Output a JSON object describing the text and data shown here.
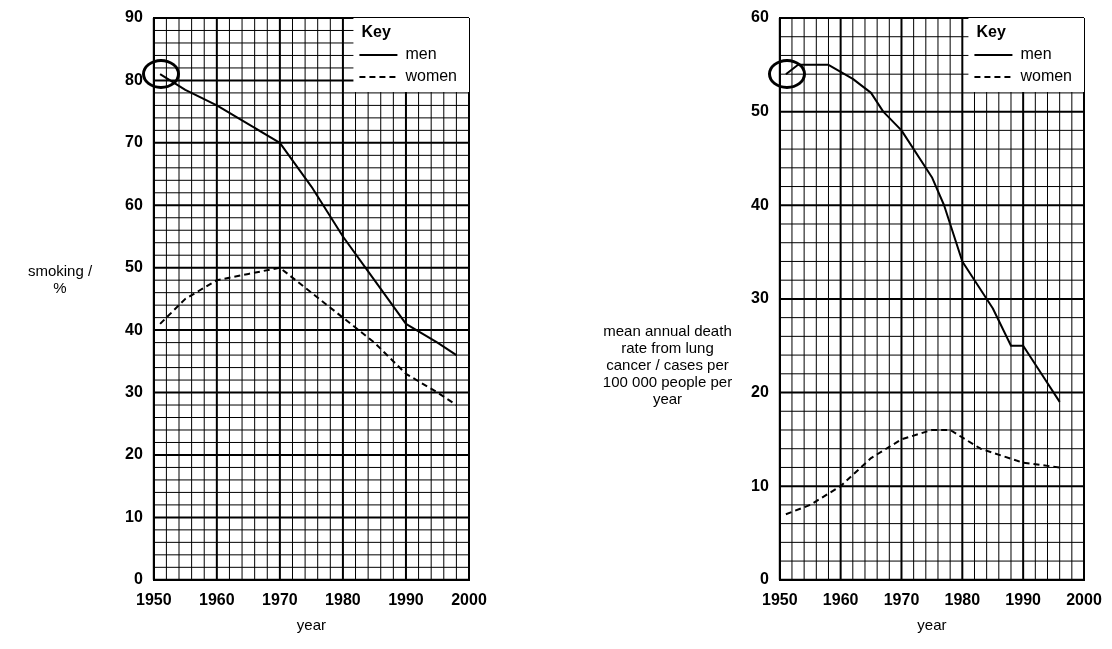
{
  "chart_data": [
    {
      "type": "line",
      "ylabel": "smoking / %",
      "xlabel": "year",
      "legend_title": "Key",
      "legend": "top right",
      "grid": true,
      "marker": "none",
      "xlim": [
        1950,
        2000
      ],
      "xticks": [
        1950,
        1960,
        1970,
        1980,
        1990,
        2000
      ],
      "ylim": [
        0,
        90
      ],
      "yticks": [
        0,
        10,
        20,
        30,
        40,
        50,
        60,
        70,
        80,
        90
      ],
      "series": [
        {
          "name": "men",
          "color": "#000000",
          "line_style": "solid",
          "x": [
            1951,
            1955,
            1960,
            1965,
            1970,
            1975,
            1980,
            1985,
            1990,
            1995,
            1998
          ],
          "values": [
            81,
            78.5,
            76,
            73,
            70,
            63,
            55,
            48,
            41,
            38,
            36
          ]
        },
        {
          "name": "women",
          "color": "#000000",
          "line_style": "dashed",
          "x": [
            1951,
            1955,
            1960,
            1965,
            1970,
            1975,
            1980,
            1985,
            1990,
            1995,
            1998
          ],
          "values": [
            41,
            45,
            48,
            49,
            50,
            46,
            42,
            38,
            33,
            30,
            28
          ]
        }
      ]
    },
    {
      "type": "line",
      "ylabel": "mean annual death rate from lung cancer / cases per 100 000 people per year",
      "xlabel": "year",
      "legend_title": "Key",
      "legend": "top right",
      "grid": true,
      "marker": "none",
      "xlim": [
        1950,
        2000
      ],
      "xticks": [
        1950,
        1960,
        1970,
        1980,
        1990,
        2000
      ],
      "ylim": [
        0,
        60
      ],
      "yticks": [
        0,
        10,
        20,
        30,
        40,
        50,
        60
      ],
      "series": [
        {
          "name": "men",
          "color": "#000000",
          "line_style": "solid",
          "x": [
            1951,
            1953,
            1958,
            1962,
            1965,
            1967,
            1970,
            1975,
            1977,
            1980,
            1985,
            1988,
            1990,
            1993,
            1996
          ],
          "values": [
            54,
            55,
            55,
            53.5,
            52,
            50,
            48,
            43,
            40,
            34,
            29,
            25,
            25,
            22,
            19
          ]
        },
        {
          "name": "women",
          "color": "#000000",
          "line_style": "dashed",
          "x": [
            1951,
            1955,
            1960,
            1965,
            1970,
            1975,
            1978,
            1983,
            1990,
            1996
          ],
          "values": [
            7,
            8,
            10,
            13,
            15,
            16,
            16,
            14,
            12.5,
            12
          ]
        }
      ]
    }
  ]
}
